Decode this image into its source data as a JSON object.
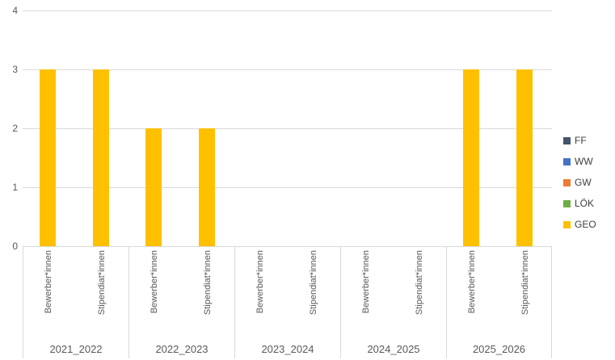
{
  "chart_data": {
    "type": "bar",
    "group_labels": [
      "2021_2022",
      "2022_2023",
      "2023_2024",
      "2024_2025",
      "2025_2026"
    ],
    "subcategories": [
      "Bewerber*innen",
      "Stipendiat*innen"
    ],
    "series": [
      {
        "name": "FF",
        "color": "#44546A",
        "values": [
          0,
          0,
          0,
          0,
          0,
          0,
          0,
          0,
          0,
          0
        ]
      },
      {
        "name": "WW",
        "color": "#4472C4",
        "values": [
          0,
          0,
          0,
          0,
          0,
          0,
          0,
          0,
          0,
          0
        ]
      },
      {
        "name": "GW",
        "color": "#ED7D31",
        "values": [
          0,
          0,
          0,
          0,
          0,
          0,
          0,
          0,
          0,
          0
        ]
      },
      {
        "name": "LÖK",
        "color": "#70AD47",
        "values": [
          0,
          0,
          0,
          0,
          0,
          0,
          0,
          0,
          0,
          0
        ]
      },
      {
        "name": "GEO",
        "color": "#FFC000",
        "values": [
          3,
          3,
          2,
          2,
          0,
          0,
          0,
          0,
          3,
          3
        ]
      }
    ],
    "y_ticks": [
      0,
      1,
      2,
      3,
      4
    ],
    "ylim": [
      0,
      4
    ],
    "grid": true,
    "legend_position": "right"
  },
  "colors": {
    "gridline": "#D9D9D9",
    "axis_text": "#595959",
    "legend_text": "#404040"
  }
}
